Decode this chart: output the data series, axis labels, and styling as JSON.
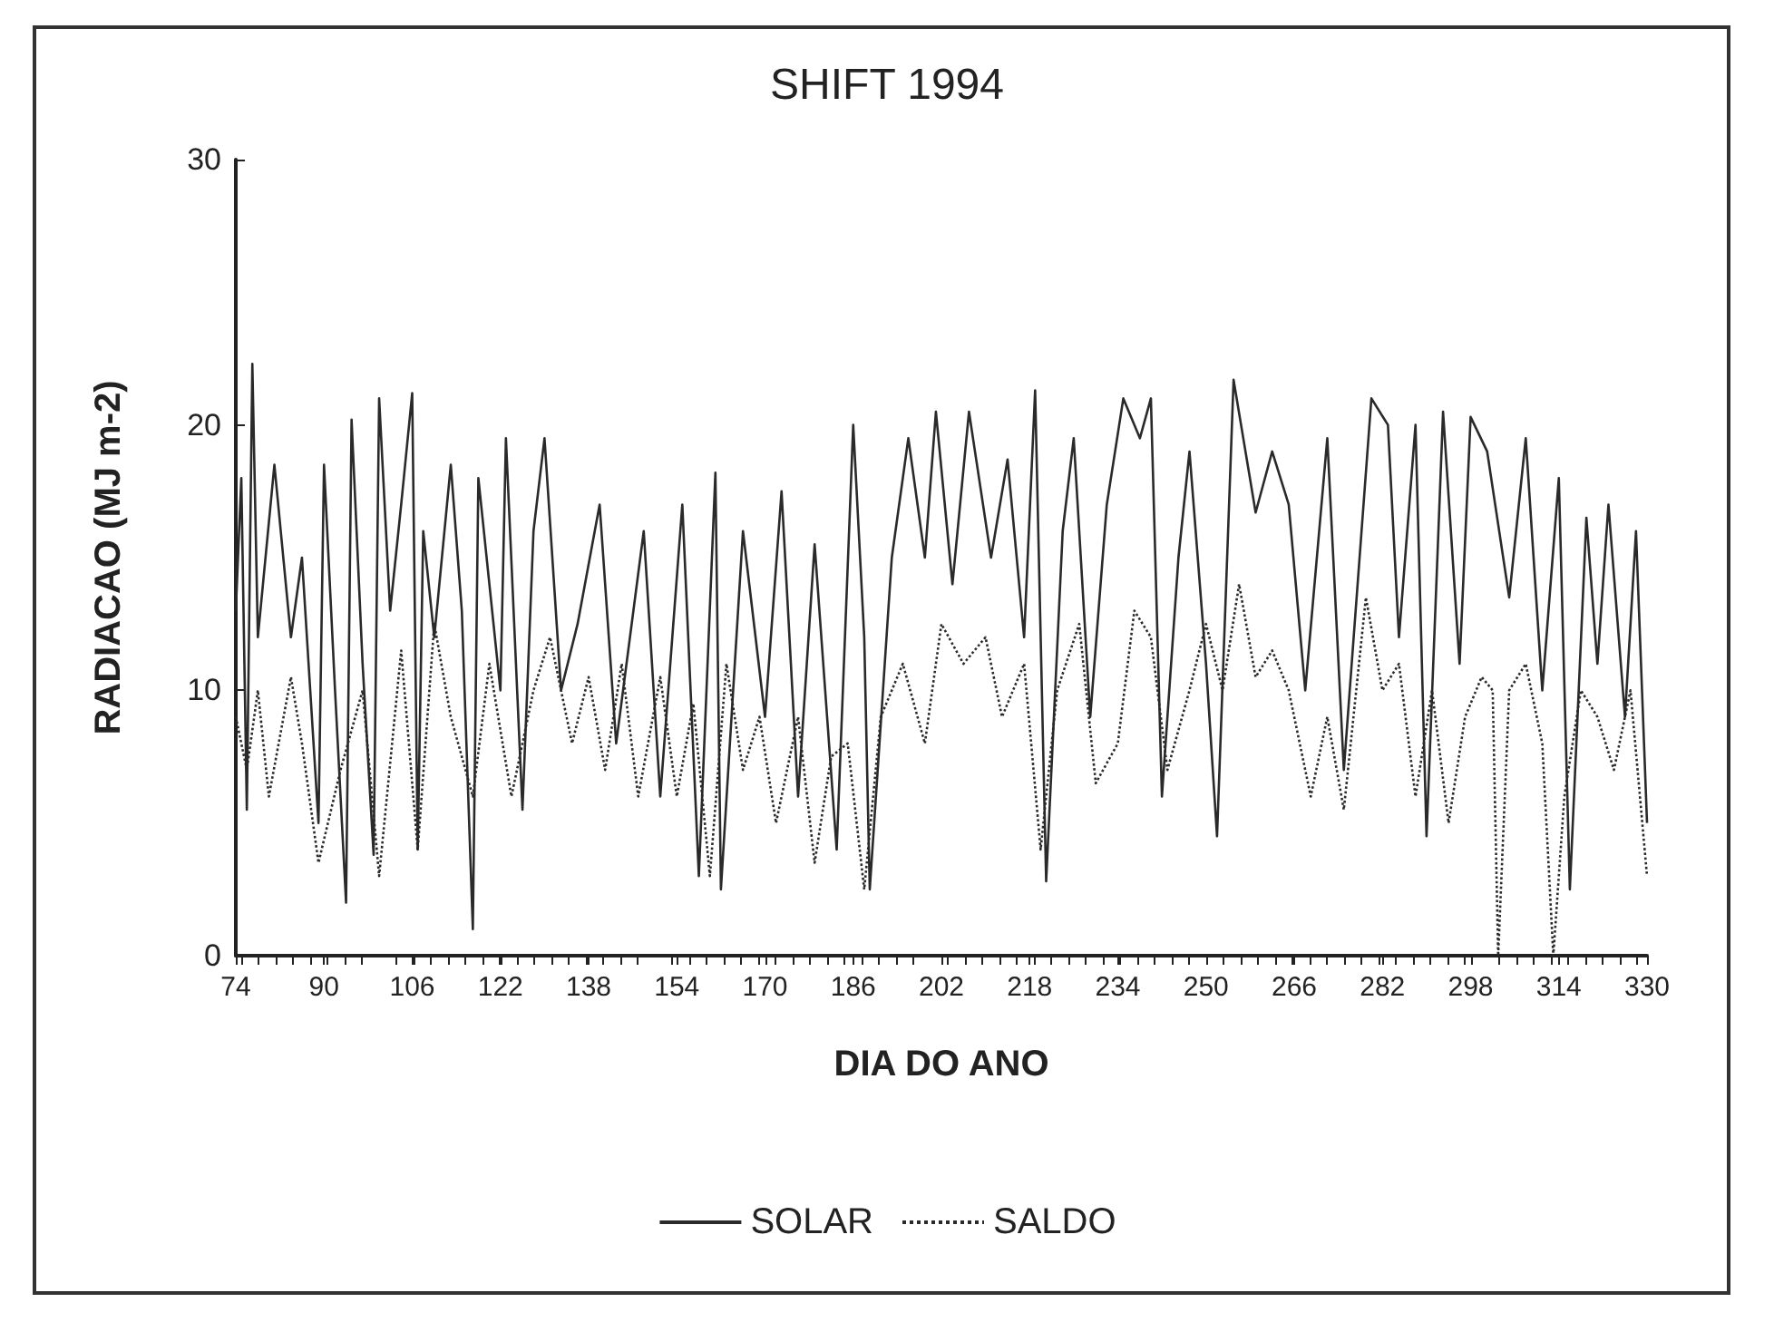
{
  "chart_data": {
    "type": "line",
    "title": "SHIFT 1994",
    "xlabel": "DIA DO ANO",
    "ylabel": "RADIACAO (MJ m-2)",
    "xlim": [
      74,
      330
    ],
    "xticks": [
      74,
      90,
      106,
      122,
      138,
      154,
      170,
      186,
      202,
      218,
      234,
      250,
      266,
      282,
      298,
      314,
      330
    ],
    "ylim": [
      0,
      30
    ],
    "yticks": [
      0,
      10,
      20,
      30
    ],
    "grid": false,
    "legend": "bottom",
    "marker": "none",
    "series": [
      {
        "name": "SOLAR",
        "color": "#2a2a2a",
        "line_style": "solid",
        "x": [
          74,
          75,
          76,
          77,
          78,
          81,
          84,
          86,
          89,
          90,
          92,
          94,
          95,
          97,
          99,
          100,
          102,
          104,
          106,
          107,
          108,
          110,
          113,
          115,
          117,
          118,
          120,
          122,
          123,
          126,
          128,
          130,
          133,
          136,
          140,
          143,
          148,
          151,
          155,
          158,
          161,
          162,
          166,
          170,
          173,
          176,
          179,
          183,
          186,
          188,
          189,
          193,
          196,
          199,
          201,
          204,
          207,
          211,
          214,
          217,
          219,
          221,
          224,
          226,
          229,
          232,
          235,
          238,
          240,
          242,
          245,
          247,
          250,
          252,
          255,
          259,
          262,
          265,
          268,
          272,
          275,
          280,
          283,
          285,
          288,
          290,
          293,
          296,
          298,
          301,
          305,
          308,
          311,
          314,
          316,
          319,
          321,
          323,
          326,
          328,
          330
        ],
        "values": [
          13,
          18,
          5.5,
          22.3,
          12,
          18.5,
          12,
          15,
          5,
          18.5,
          10,
          2,
          20.2,
          11,
          3.8,
          21,
          13,
          17,
          21.2,
          4,
          16,
          12,
          18.5,
          13,
          1,
          18,
          14,
          10,
          19.5,
          5.5,
          16,
          19.5,
          10,
          12.5,
          17,
          8,
          16,
          6,
          17,
          3,
          18.2,
          2.5,
          16,
          9,
          17.5,
          6,
          15.5,
          4,
          20,
          12,
          2.5,
          15,
          19.5,
          15,
          20.5,
          14,
          20.5,
          15,
          18.7,
          12,
          21.3,
          2.8,
          16,
          19.5,
          9,
          17,
          21,
          19.5,
          21,
          6,
          15,
          19,
          11,
          4.5,
          21.7,
          16.7,
          19,
          17,
          10,
          19.5,
          7,
          21,
          20,
          12,
          20,
          4.5,
          20.5,
          11,
          20.3,
          19,
          13.5,
          19.5,
          10,
          18,
          2.5,
          16.5,
          11,
          17,
          9,
          16,
          5
        ]
      },
      {
        "name": "SALDO",
        "color": "#2a2a2a",
        "line_style": "dotted",
        "x": [
          74,
          76,
          78,
          80,
          84,
          86,
          89,
          93,
          97,
          100,
          104,
          107,
          110,
          113,
          117,
          120,
          124,
          128,
          131,
          135,
          138,
          141,
          144,
          147,
          151,
          154,
          157,
          160,
          163,
          166,
          169,
          172,
          176,
          179,
          182,
          185,
          188,
          191,
          195,
          199,
          202,
          206,
          210,
          213,
          217,
          220,
          223,
          227,
          230,
          234,
          237,
          240,
          243,
          247,
          250,
          253,
          256,
          259,
          262,
          265,
          269,
          272,
          275,
          279,
          282,
          285,
          288,
          291,
          294,
          297,
          300,
          302,
          303,
          305,
          308,
          311,
          313,
          315,
          318,
          321,
          324,
          327,
          330
        ],
        "values": [
          9,
          7,
          10,
          6,
          10.5,
          8,
          3.5,
          7,
          10,
          3,
          11.5,
          4,
          12.5,
          9,
          6,
          11,
          6,
          10,
          12,
          8,
          10.5,
          7,
          11,
          6,
          10.5,
          6,
          9.5,
          3,
          11,
          7,
          9,
          5,
          9,
          3.5,
          7.5,
          8,
          2.5,
          9,
          11,
          8,
          12.5,
          11,
          12,
          9,
          11,
          4,
          10,
          12.5,
          6.5,
          8,
          13,
          12,
          7,
          10,
          12.5,
          10,
          14,
          10.5,
          11.5,
          10,
          6,
          9,
          5.5,
          13.5,
          10,
          11,
          6,
          10,
          5,
          9,
          10.5,
          10,
          0,
          10,
          11,
          8,
          0,
          6,
          10,
          9,
          7,
          10,
          3
        ]
      }
    ]
  }
}
